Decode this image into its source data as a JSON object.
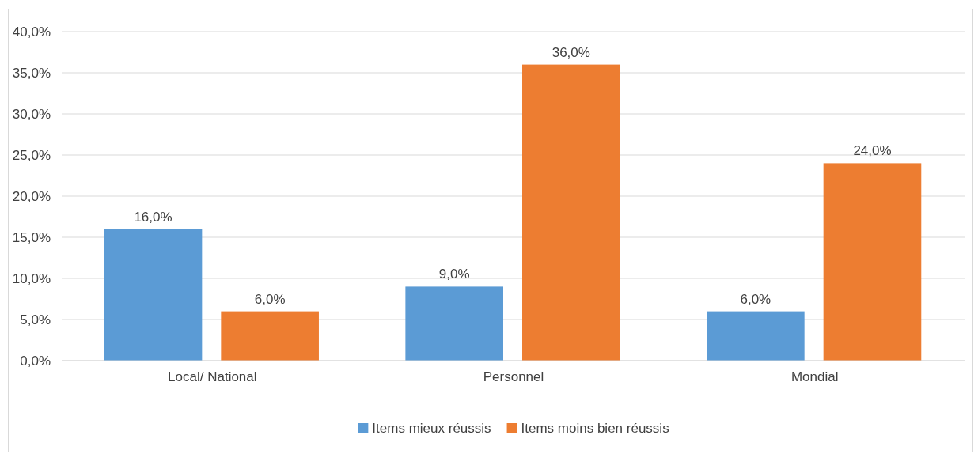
{
  "chart_data": {
    "type": "bar",
    "categories": [
      "Local/ National",
      "Personnel",
      "Mondial"
    ],
    "series": [
      {
        "name": "Items mieux réussis",
        "color": "#5b9bd5",
        "values": [
          16,
          9,
          6
        ],
        "value_labels": [
          "16,0%",
          "9,0%",
          "6,0%"
        ]
      },
      {
        "name": "Items moins bien réussis",
        "color": "#ed7d31",
        "values": [
          6,
          36,
          24
        ],
        "value_labels": [
          "6,0%",
          "36,0%",
          "24,0%"
        ]
      }
    ],
    "ylim": [
      0,
      40
    ],
    "yticks": [
      {
        "value": 0,
        "label": "0,0%"
      },
      {
        "value": 5,
        "label": "5,0%"
      },
      {
        "value": 10,
        "label": "10,0%"
      },
      {
        "value": 15,
        "label": "15,0%"
      },
      {
        "value": 20,
        "label": "20,0%"
      },
      {
        "value": 25,
        "label": "25,0%"
      },
      {
        "value": 30,
        "label": "30,0%"
      },
      {
        "value": 35,
        "label": "35,0%"
      },
      {
        "value": 40,
        "label": "40,0%"
      }
    ],
    "grid": "y",
    "legend": "bottom"
  }
}
